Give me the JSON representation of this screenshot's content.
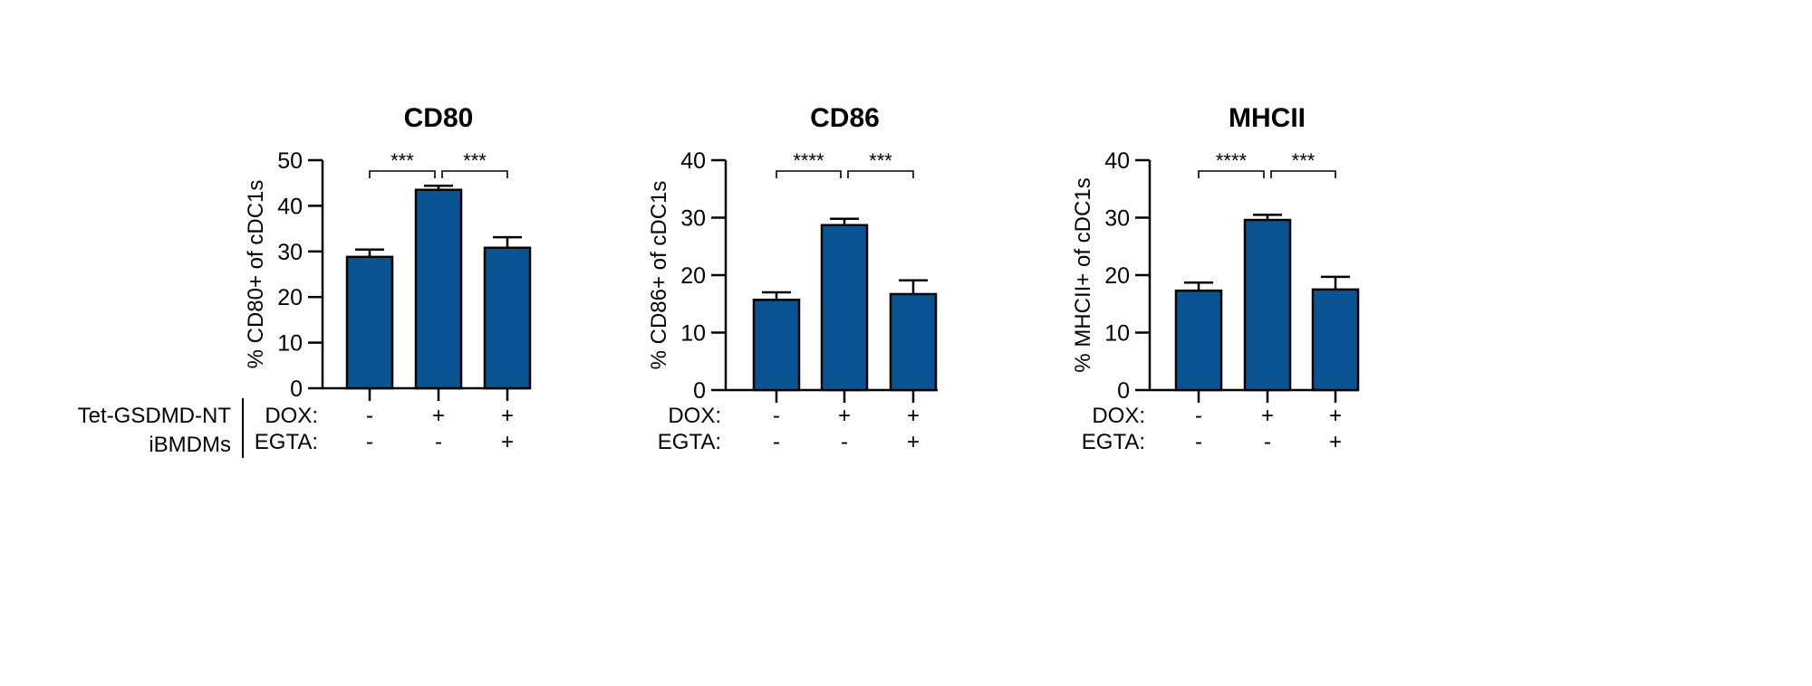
{
  "colors": {
    "bar": "#0a5494",
    "stroke": "#000000"
  },
  "row_labels": {
    "cell_line": "Tet-GSDMD-NT",
    "cell_type": "iBMDMs",
    "dox": "DOX:",
    "egta": "EGTA:"
  },
  "chart_data": [
    {
      "type": "bar",
      "title": "CD80",
      "ylabel": "% CD80+ of cDC1s",
      "ylim": [
        0,
        50
      ],
      "yticks": [
        0,
        10,
        20,
        30,
        40,
        50
      ],
      "categories": [
        "DOX- EGTA-",
        "DOX+ EGTA-",
        "DOX+ EGTA+"
      ],
      "dox": [
        "-",
        "+",
        "+"
      ],
      "egta": [
        "-",
        "-",
        "+"
      ],
      "values": [
        28.8,
        43.5,
        30.8
      ],
      "errors": [
        1.6,
        0.9,
        2.3
      ],
      "significance": [
        {
          "from": 0,
          "to": 1,
          "label": "***"
        },
        {
          "from": 1,
          "to": 2,
          "label": "***"
        }
      ]
    },
    {
      "type": "bar",
      "title": "CD86",
      "ylabel": "% CD86+ of cDC1s",
      "ylim": [
        0,
        40
      ],
      "yticks": [
        0,
        10,
        20,
        30,
        40
      ],
      "categories": [
        "DOX- EGTA-",
        "DOX+ EGTA-",
        "DOX+ EGTA+"
      ],
      "dox": [
        "-",
        "+",
        "+"
      ],
      "egta": [
        "-",
        "-",
        "+"
      ],
      "values": [
        15.7,
        28.7,
        16.7
      ],
      "errors": [
        1.3,
        1.1,
        2.4
      ],
      "significance": [
        {
          "from": 0,
          "to": 1,
          "label": "****"
        },
        {
          "from": 1,
          "to": 2,
          "label": "***"
        }
      ]
    },
    {
      "type": "bar",
      "title": "MHCII",
      "ylabel": "% MHCII+ of cDC1s",
      "ylim": [
        0,
        40
      ],
      "yticks": [
        0,
        10,
        20,
        30,
        40
      ],
      "categories": [
        "DOX- EGTA-",
        "DOX+ EGTA-",
        "DOX+ EGTA+"
      ],
      "dox": [
        "-",
        "+",
        "+"
      ],
      "egta": [
        "-",
        "-",
        "+"
      ],
      "values": [
        17.3,
        29.6,
        17.5
      ],
      "errors": [
        1.4,
        0.9,
        2.2
      ],
      "significance": [
        {
          "from": 0,
          "to": 1,
          "label": "****"
        },
        {
          "from": 1,
          "to": 2,
          "label": "***"
        }
      ]
    }
  ]
}
